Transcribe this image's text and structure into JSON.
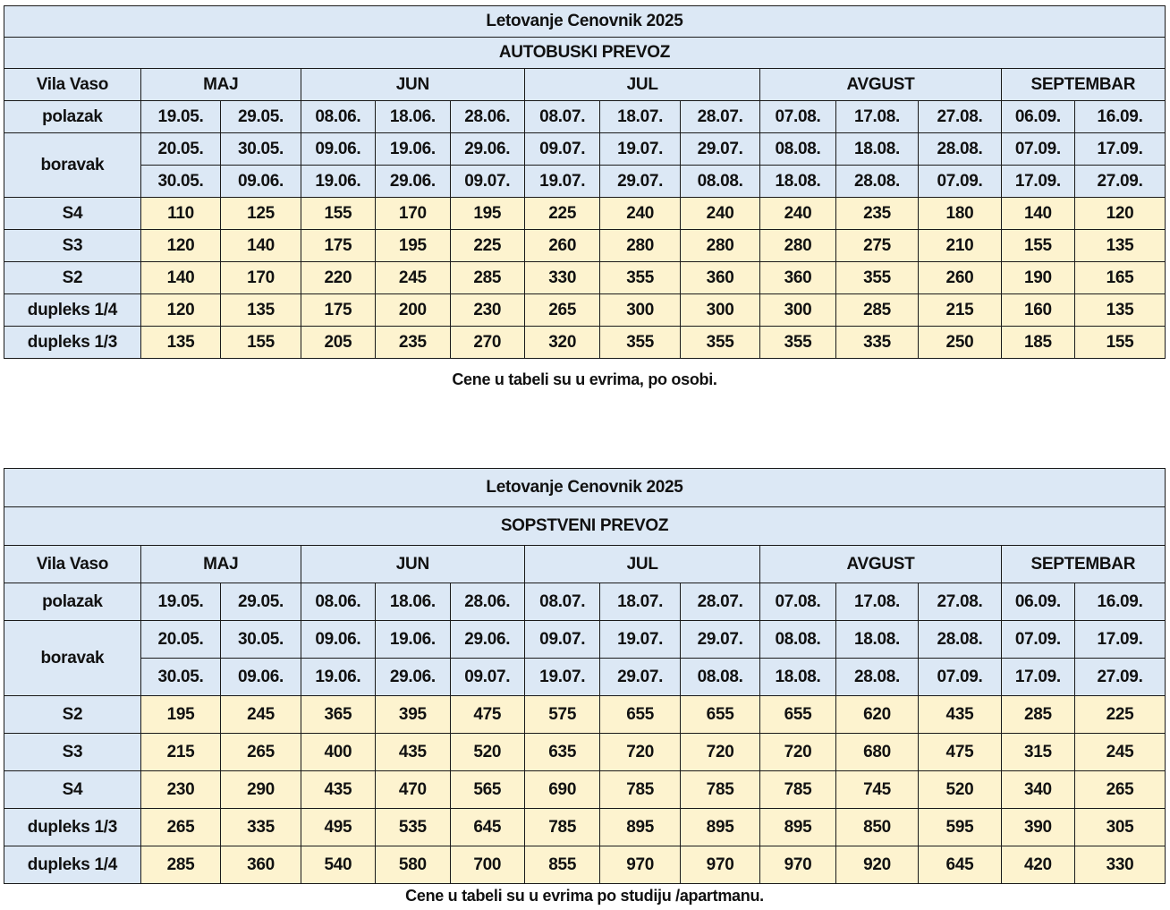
{
  "tables": [
    {
      "title": "Letovanje Cenovnik 2025",
      "subtitle": "AUTOBUSKI PREVOZ",
      "corner": "Vila Vaso",
      "months": [
        "MAJ",
        "JUN",
        "JUL",
        "AVGUST",
        "SEPTEMBAR"
      ],
      "row_label_departure": "polazak",
      "row_label_stay": "boravak",
      "departures": [
        "19.05.",
        "29.05.",
        "08.06.",
        "18.06.",
        "28.06.",
        "08.07.",
        "18.07.",
        "28.07.",
        "07.08.",
        "17.08.",
        "27.08.",
        "06.09.",
        "16.09."
      ],
      "stay_from": [
        "20.05.",
        "30.05.",
        "09.06.",
        "19.06.",
        "29.06.",
        "09.07.",
        "19.07.",
        "29.07.",
        "08.08.",
        "18.08.",
        "28.08.",
        "07.09.",
        "17.09."
      ],
      "stay_to": [
        "30.05.",
        "09.06.",
        "19.06.",
        "29.06.",
        "09.07.",
        "19.07.",
        "29.07.",
        "08.08.",
        "18.08.",
        "28.08.",
        "07.09.",
        "17.09.",
        "27.09."
      ],
      "rows": [
        {
          "label": "S4",
          "values": [
            "110",
            "125",
            "155",
            "170",
            "195",
            "225",
            "240",
            "240",
            "240",
            "235",
            "180",
            "140",
            "120"
          ]
        },
        {
          "label": "S3",
          "values": [
            "120",
            "140",
            "175",
            "195",
            "225",
            "260",
            "280",
            "280",
            "280",
            "275",
            "210",
            "155",
            "135"
          ]
        },
        {
          "label": "S2",
          "values": [
            "140",
            "170",
            "220",
            "245",
            "285",
            "330",
            "355",
            "360",
            "360",
            "355",
            "260",
            "190",
            "165"
          ]
        },
        {
          "label": "dupleks 1/4",
          "values": [
            "120",
            "135",
            "175",
            "200",
            "230",
            "265",
            "300",
            "300",
            "300",
            "285",
            "215",
            "160",
            "135"
          ]
        },
        {
          "label": "dupleks 1/3",
          "values": [
            "135",
            "155",
            "205",
            "235",
            "270",
            "320",
            "355",
            "355",
            "355",
            "335",
            "250",
            "185",
            "155"
          ]
        }
      ],
      "note": "Cene u tabeli su u evrima, po osobi."
    },
    {
      "title": "Letovanje Cenovnik 2025",
      "subtitle": "SOPSTVENI PREVOZ",
      "corner": "Vila Vaso",
      "months": [
        "MAJ",
        "JUN",
        "JUL",
        "AVGUST",
        "SEPTEMBAR"
      ],
      "row_label_departure": "polazak",
      "row_label_stay": "boravak",
      "departures": [
        "19.05.",
        "29.05.",
        "08.06.",
        "18.06.",
        "28.06.",
        "08.07.",
        "18.07.",
        "28.07.",
        "07.08.",
        "17.08.",
        "27.08.",
        "06.09.",
        "16.09."
      ],
      "stay_from": [
        "20.05.",
        "30.05.",
        "09.06.",
        "19.06.",
        "29.06.",
        "09.07.",
        "19.07.",
        "29.07.",
        "08.08.",
        "18.08.",
        "28.08.",
        "07.09.",
        "17.09."
      ],
      "stay_to": [
        "30.05.",
        "09.06.",
        "19.06.",
        "29.06.",
        "09.07.",
        "19.07.",
        "29.07.",
        "08.08.",
        "18.08.",
        "28.08.",
        "07.09.",
        "17.09.",
        "27.09."
      ],
      "rows": [
        {
          "label": "S2",
          "values": [
            "195",
            "245",
            "365",
            "395",
            "475",
            "575",
            "655",
            "655",
            "655",
            "620",
            "435",
            "285",
            "225"
          ]
        },
        {
          "label": "S3",
          "values": [
            "215",
            "265",
            "400",
            "435",
            "520",
            "635",
            "720",
            "720",
            "720",
            "680",
            "475",
            "315",
            "245"
          ]
        },
        {
          "label": "S4",
          "values": [
            "230",
            "290",
            "435",
            "470",
            "565",
            "690",
            "785",
            "785",
            "785",
            "745",
            "520",
            "340",
            "265"
          ]
        },
        {
          "label": "dupleks 1/3",
          "values": [
            "265",
            "335",
            "495",
            "535",
            "645",
            "785",
            "895",
            "895",
            "895",
            "850",
            "595",
            "390",
            "305"
          ]
        },
        {
          "label": "dupleks 1/4",
          "values": [
            "285",
            "360",
            "540",
            "580",
            "700",
            "855",
            "970",
            "970",
            "970",
            "920",
            "645",
            "420",
            "330"
          ]
        }
      ],
      "note": "Cene u tabeli su u evrima po studiju /apartmanu."
    }
  ]
}
